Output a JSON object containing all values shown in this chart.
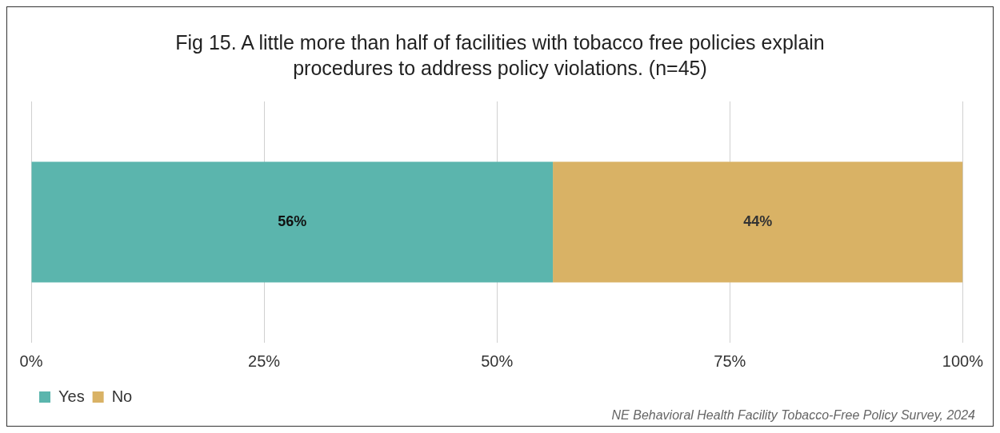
{
  "chart_data": {
    "type": "bar",
    "title": "Fig 15. A little more than half of facilities with tobacco free policies explain procedures to address policy violations. (n=45)",
    "orientation": "horizontal",
    "stacked": true,
    "categories": [
      null
    ],
    "series": [
      {
        "name": "Yes",
        "color": "#5bb5ad",
        "values": [
          56
        ],
        "value_labels": [
          "56%"
        ]
      },
      {
        "name": "No",
        "color": "#d9b265",
        "values": [
          44
        ],
        "value_labels": [
          "44%"
        ]
      }
    ],
    "xlim": [
      0,
      100
    ],
    "xticks": [
      {
        "value": 0,
        "label": "0%"
      },
      {
        "value": 25,
        "label": "25%"
      },
      {
        "value": 50,
        "label": "50%"
      },
      {
        "value": 75,
        "label": "75%"
      },
      {
        "value": 100,
        "label": "100%"
      }
    ],
    "grid": "x",
    "legend": "bottom left",
    "annotations": [
      "NE Behavioral Health Facility Tobacco-Free Policy Survey, 2024"
    ]
  }
}
